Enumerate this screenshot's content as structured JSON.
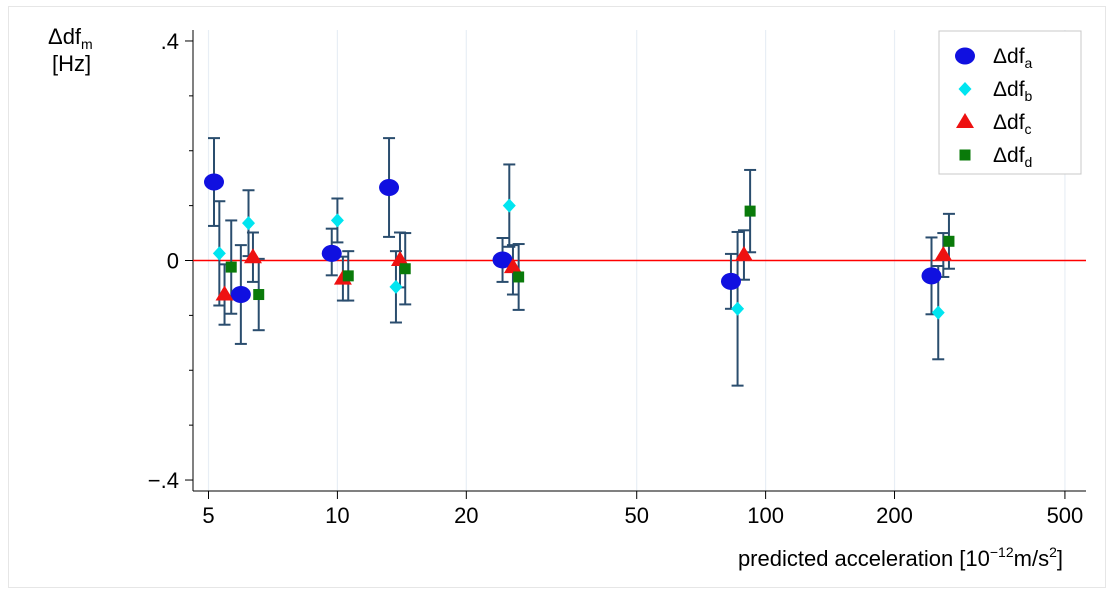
{
  "chart_data": {
    "type": "scatter",
    "x_scale": "log",
    "ylabel_main": "Δdf",
    "ylabel_sub": "m",
    "ylabel_unit": "[Hz]",
    "xlabel_main": "predicted acceleration  [10",
    "xlabel_exp": "−12",
    "xlabel_unit": "m/s",
    "xlabel_unit_exp": "2",
    "xlabel_close": "]",
    "xlim": [
      4.6,
      560
    ],
    "ylim": [
      -0.42,
      0.42
    ],
    "x_ticks": [
      {
        "value": 5,
        "label": "5"
      },
      {
        "value": 10,
        "label": "10"
      },
      {
        "value": 20,
        "label": "20"
      },
      {
        "value": 50,
        "label": "50"
      },
      {
        "value": 100,
        "label": "100"
      },
      {
        "value": 200,
        "label": "200"
      },
      {
        "value": 500,
        "label": "500"
      }
    ],
    "y_ticks": [
      {
        "value": 0.4,
        "label": ".4"
      },
      {
        "value": 0,
        "label": "0"
      },
      {
        "value": -0.4,
        "label": "−.4"
      }
    ],
    "y_minor_ticks": [
      0.3,
      0.2,
      0.1,
      -0.1,
      -0.2,
      -0.3
    ],
    "reference_line": {
      "y": 0,
      "color": "#ff0000"
    },
    "grid": "vertical",
    "legend_position": "top-right",
    "errorbar_color": "#2a4d6e",
    "series": [
      {
        "name_main": "Δdf",
        "name_sub": "a",
        "marker": "circle",
        "color": "#1010e0",
        "points": [
          {
            "x": 5.15,
            "y": 0.143,
            "lo": 0.063,
            "hi": 0.223
          },
          {
            "x": 5.95,
            "y": -0.062,
            "lo": -0.152,
            "hi": 0.028
          },
          {
            "x": 9.7,
            "y": 0.013,
            "lo": -0.027,
            "hi": 0.058
          },
          {
            "x": 13.2,
            "y": 0.133,
            "lo": 0.043,
            "hi": 0.223
          },
          {
            "x": 24.3,
            "y": 0.001,
            "lo": -0.039,
            "hi": 0.041
          },
          {
            "x": 83,
            "y": -0.038,
            "lo": -0.088,
            "hi": 0.012
          },
          {
            "x": 244,
            "y": -0.028,
            "lo": -0.098,
            "hi": 0.042
          }
        ]
      },
      {
        "name_main": "Δdf",
        "name_sub": "b",
        "marker": "diamond",
        "color": "#00e5f0",
        "points": [
          {
            "x": 5.3,
            "y": 0.013,
            "lo": -0.082,
            "hi": 0.108
          },
          {
            "x": 6.2,
            "y": 0.068,
            "lo": 0.008,
            "hi": 0.128
          },
          {
            "x": 10.0,
            "y": 0.073,
            "lo": 0.033,
            "hi": 0.113
          },
          {
            "x": 13.7,
            "y": -0.048,
            "lo": -0.113,
            "hi": 0.017
          },
          {
            "x": 25.2,
            "y": 0.1,
            "lo": 0.025,
            "hi": 0.175
          },
          {
            "x": 86,
            "y": -0.088,
            "lo": -0.228,
            "hi": 0.052
          },
          {
            "x": 253,
            "y": -0.095,
            "lo": -0.18,
            "hi": -0.01
          }
        ]
      },
      {
        "name_main": "Δdf",
        "name_sub": "c",
        "marker": "triangle",
        "color": "#ee1111",
        "points": [
          {
            "x": 5.45,
            "y": -0.062,
            "lo": -0.117,
            "hi": -0.007
          },
          {
            "x": 6.35,
            "y": 0.006,
            "lo": -0.039,
            "hi": 0.051
          },
          {
            "x": 10.3,
            "y": -0.033,
            "lo": -0.073,
            "hi": 0.007
          },
          {
            "x": 14.0,
            "y": 0.001,
            "lo": -0.049,
            "hi": 0.051
          },
          {
            "x": 25.7,
            "y": -0.012,
            "lo": -0.062,
            "hi": 0.028
          },
          {
            "x": 89,
            "y": 0.01,
            "lo": -0.035,
            "hi": 0.055
          },
          {
            "x": 260,
            "y": 0.01,
            "lo": -0.03,
            "hi": 0.05
          }
        ]
      },
      {
        "name_main": "Δdf",
        "name_sub": "d",
        "marker": "square",
        "color": "#0a7a0a",
        "points": [
          {
            "x": 5.65,
            "y": -0.012,
            "lo": -0.097,
            "hi": 0.073
          },
          {
            "x": 6.55,
            "y": -0.062,
            "lo": -0.127,
            "hi": 0.003
          },
          {
            "x": 10.6,
            "y": -0.028,
            "lo": -0.073,
            "hi": 0.017
          },
          {
            "x": 14.4,
            "y": -0.015,
            "lo": -0.08,
            "hi": 0.05
          },
          {
            "x": 26.5,
            "y": -0.03,
            "lo": -0.09,
            "hi": 0.03
          },
          {
            "x": 92,
            "y": 0.09,
            "lo": 0.015,
            "hi": 0.165
          },
          {
            "x": 268,
            "y": 0.035,
            "lo": -0.015,
            "hi": 0.085
          }
        ]
      }
    ]
  }
}
